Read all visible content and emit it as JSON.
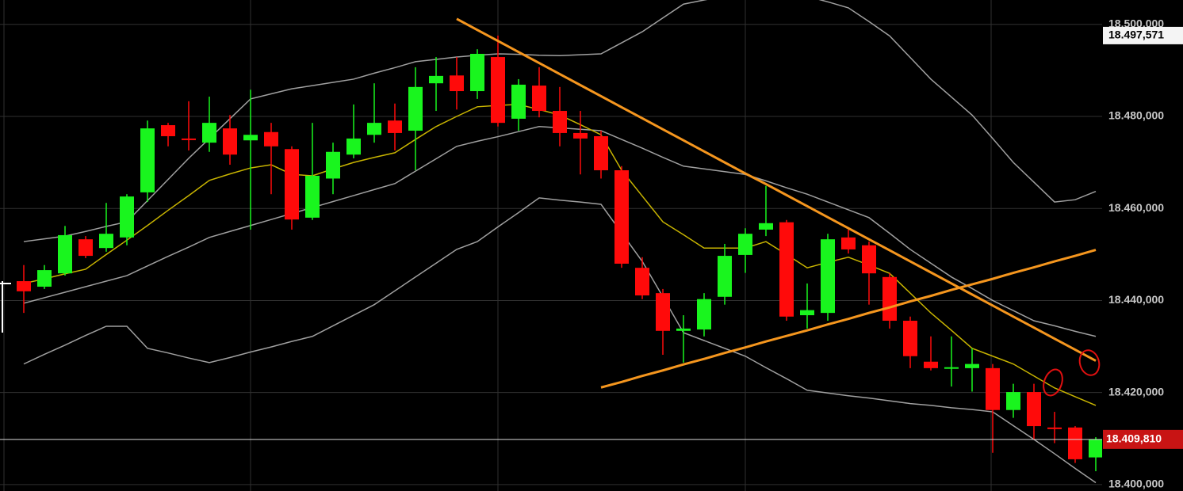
{
  "chart_data": {
    "type": "candlestick",
    "up_color": "#19f51e",
    "down_color": "#ff0a0a",
    "ylim": [
      18398.6,
      18505.3
    ],
    "yticks": [
      {
        "value": 18400,
        "label": "18.400,000"
      },
      {
        "value": 18420,
        "label": "18.420,000"
      },
      {
        "value": 18440,
        "label": "18.440,000"
      },
      {
        "value": 18460,
        "label": "18.460,000"
      },
      {
        "value": 18480,
        "label": "18.480,000"
      },
      {
        "value": 18500,
        "label": "18.500,000"
      }
    ],
    "grid": true,
    "open": [
      18444.2,
      18443.0,
      18445.9,
      18453.3,
      18451.4,
      18453.7,
      18463.5,
      18478.1,
      18475.2,
      18474.3,
      18477.4,
      18474.8,
      18476.6,
      18472.9,
      18458.0,
      18466.5,
      18471.7,
      18476.0,
      18479.1,
      18476.9,
      18487.2,
      18488.9,
      18485.5,
      18492.9,
      18479.5,
      18486.7,
      18481.2,
      18476.4,
      18475.7,
      18468.3,
      18447.1,
      18441.6,
      18433.4,
      18433.7,
      18440.8,
      18449.9,
      18455.4,
      18457.0,
      18436.8,
      18437.3,
      18453.7,
      18452.0,
      18445.1,
      18435.6,
      18426.7,
      18425.3,
      18425.3,
      18425.3,
      18416.2,
      18420.1,
      18412.4,
      18412.4,
      18405.9
    ],
    "high": [
      18447.7,
      18447.7,
      18456.2,
      18454.0,
      18461.2,
      18463.1,
      18479.1,
      18478.6,
      18483.3,
      18484.3,
      18480.3,
      18485.8,
      18478.6,
      18473.5,
      18478.6,
      18474.3,
      18482.6,
      18487.2,
      18482.8,
      18490.7,
      18492.9,
      18492.9,
      18494.6,
      18497.571,
      18488.1,
      18490.7,
      18486.4,
      18481.2,
      18476.9,
      18469.2,
      18449.4,
      18442.5,
      18436.8,
      18441.6,
      18452.3,
      18455.7,
      18464.9,
      18457.5,
      18443.7,
      18454.5,
      18455.4,
      18452.8,
      18445.9,
      18436.5,
      18432.2,
      18432.2,
      18429.6,
      18426.2,
      18421.9,
      18421.9,
      18415.8,
      18412.7,
      18410.3
    ],
    "low": [
      18437.3,
      18442.5,
      18445.4,
      18449.2,
      18450.6,
      18452.0,
      18461.4,
      18473.5,
      18472.6,
      18472.3,
      18469.5,
      18455.4,
      18463.1,
      18455.4,
      18457.5,
      18463.1,
      18470.9,
      18474.3,
      18472.6,
      18468.3,
      18481.2,
      18481.5,
      18483.8,
      18477.8,
      18476.9,
      18479.8,
      18473.5,
      18467.4,
      18466.5,
      18447.1,
      18440.3,
      18428.2,
      18426.5,
      18432.2,
      18439.1,
      18446.0,
      18454.0,
      18435.6,
      18433.9,
      18435.6,
      18450.2,
      18439.1,
      18433.9,
      18425.3,
      18424.8,
      18421.3,
      18420.2,
      18406.9,
      18414.5,
      18409.8,
      18409.0,
      18404.7,
      18402.9
    ],
    "close": [
      18442.0,
      18446.6,
      18454.2,
      18449.7,
      18454.5,
      18462.6,
      18477.4,
      18475.7,
      18475.0,
      18478.6,
      18471.7,
      18476.0,
      18473.5,
      18457.6,
      18467.1,
      18472.3,
      18475.2,
      18478.6,
      18476.4,
      18486.4,
      18488.8,
      18485.5,
      18493.6,
      18478.6,
      18486.9,
      18481.2,
      18476.4,
      18475.2,
      18468.3,
      18448.0,
      18441.1,
      18433.4,
      18433.9,
      18440.3,
      18449.7,
      18454.5,
      18456.8,
      18436.5,
      18437.9,
      18453.3,
      18451.1,
      18445.9,
      18435.6,
      18427.9,
      18425.3,
      18425.5,
      18426.2,
      18416.2,
      18420.1,
      18412.7,
      18412.1,
      18405.5,
      18409.81
    ],
    "series": [
      {
        "color": "#a0a0a0",
        "values": [
          18452.8,
          18453.4,
          18454.0,
          18455.0,
          18456.1,
          18457.1,
          18461.7,
          18466.3,
          18470.9,
          18475.2,
          18479.5,
          18483.8,
          18484.9,
          18486.0,
          18486.7,
          18487.4,
          18488.1,
          18489.4,
          18490.6,
          18491.9,
          18492.4,
          18492.9,
          18493.3,
          18493.6,
          18493.5,
          18493.3,
          18493.2,
          18493.4,
          18493.6,
          18496.0,
          18498.4,
          18501.4,
          18504.4,
          18505.3,
          18506.1,
          18506.3,
          18506.5,
          18506.7,
          18506.1,
          18504.9,
          18503.6,
          18500.6,
          18497.5,
          18492.8,
          18488.1,
          18484.2,
          18480.3,
          18475.2,
          18470.0,
          18465.7,
          18461.4,
          18461.9,
          18463.7
        ]
      },
      {
        "color": "#a0a0a0",
        "values": [
          18439.4,
          18440.6,
          18441.8,
          18443.0,
          18444.2,
          18445.4,
          18447.5,
          18449.6,
          18451.6,
          18453.7,
          18455.0,
          18456.3,
          18457.6,
          18458.9,
          18460.2,
          18461.5,
          18462.8,
          18464.1,
          18465.4,
          18468.1,
          18470.8,
          18473.5,
          18474.6,
          18475.6,
          18476.7,
          18477.8,
          18477.5,
          18477.2,
          18476.9,
          18475.0,
          18473.1,
          18471.1,
          18469.2,
          18468.6,
          18468.0,
          18467.4,
          18466.0,
          18464.5,
          18463.1,
          18461.4,
          18459.7,
          18458.0,
          18454.6,
          18451.1,
          18448.1,
          18445.1,
          18442.6,
          18440.0,
          18437.8,
          18435.6,
          18434.5,
          18433.3,
          18432.2
        ]
      },
      {
        "color": "#a0a0a0",
        "values": [
          18426.2,
          18428.3,
          18430.3,
          18432.4,
          18434.4,
          18434.4,
          18429.6,
          18428.6,
          18427.5,
          18426.5,
          18427.6,
          18428.8,
          18429.9,
          18431.1,
          18432.2,
          18434.5,
          18436.8,
          18439.1,
          18442.1,
          18445.1,
          18448.1,
          18451.1,
          18452.8,
          18456.0,
          18459.1,
          18462.3,
          18461.8,
          18461.4,
          18460.9,
          18454.7,
          18448.5,
          18440.8,
          18433.0,
          18431.3,
          18429.6,
          18427.9,
          18425.4,
          18423.0,
          18420.5,
          18419.9,
          18419.3,
          18418.8,
          18418.2,
          18417.6,
          18417.2,
          18416.7,
          18416.3,
          18415.8,
          18412.8,
          18409.8,
          18406.7,
          18403.5,
          18400.4
        ]
      },
      {
        "color": "#c8b400",
        "values": [
          18443.7,
          18444.7,
          18445.8,
          18446.8,
          18450.0,
          18453.1,
          18456.3,
          18459.6,
          18462.8,
          18466.1,
          18467.5,
          18468.8,
          18469.5,
          18467.4,
          18467.1,
          18468.6,
          18470.0,
          18471.1,
          18472.1,
          18475.0,
          18477.8,
          18480.0,
          18482.1,
          18482.4,
          18482.6,
          18481.5,
          18480.3,
          18478.2,
          18476.0,
          18468.3,
          18462.7,
          18457.1,
          18454.3,
          18451.4,
          18451.4,
          18451.4,
          18452.8,
          18450.0,
          18447.1,
          18448.3,
          18449.4,
          18447.7,
          18445.9,
          18441.6,
          18437.3,
          18433.5,
          18429.6,
          18427.9,
          18426.2,
          18423.6,
          18421.0,
          18419.1,
          18417.2
        ]
      }
    ],
    "trendlines": [
      {
        "color": "#f5961e",
        "values": [
          null,
          null,
          null,
          null,
          null,
          null,
          null,
          null,
          null,
          null,
          null,
          null,
          null,
          null,
          null,
          null,
          null,
          null,
          null,
          null,
          null,
          18501.2,
          18498.8,
          18496.4,
          18494.0,
          18491.6,
          18489.2,
          18486.8,
          18484.4,
          18482.0,
          18479.6,
          18477.2,
          18474.8,
          18472.4,
          18470.0,
          18467.6,
          18465.3,
          18462.9,
          18460.5,
          18458.1,
          18455.7,
          18453.3,
          18450.9,
          18448.5,
          18446.1,
          18443.7,
          18441.3,
          18438.9,
          18436.5,
          18434.1,
          18431.7,
          18429.3,
          18426.9
        ]
      },
      {
        "color": "#f5961e",
        "values": [
          null,
          null,
          null,
          null,
          null,
          null,
          null,
          null,
          null,
          null,
          null,
          null,
          null,
          null,
          null,
          null,
          null,
          null,
          null,
          null,
          null,
          null,
          null,
          null,
          null,
          null,
          null,
          null,
          18421.1,
          18422.3,
          18423.6,
          18424.8,
          18426.1,
          18427.3,
          18428.6,
          18429.8,
          18431.1,
          18432.3,
          18433.5,
          18434.8,
          18436.0,
          18437.3,
          18438.5,
          18439.8,
          18441.0,
          18442.3,
          18443.5,
          18444.7,
          18446.0,
          18447.2,
          18448.5,
          18449.7,
          18451.0
        ]
      }
    ],
    "last_price": {
      "value": 18409.81,
      "label": "18.409,810",
      "color": "#c81414"
    },
    "high_price": {
      "value": 18497.571,
      "label": "18.497,571"
    }
  }
}
